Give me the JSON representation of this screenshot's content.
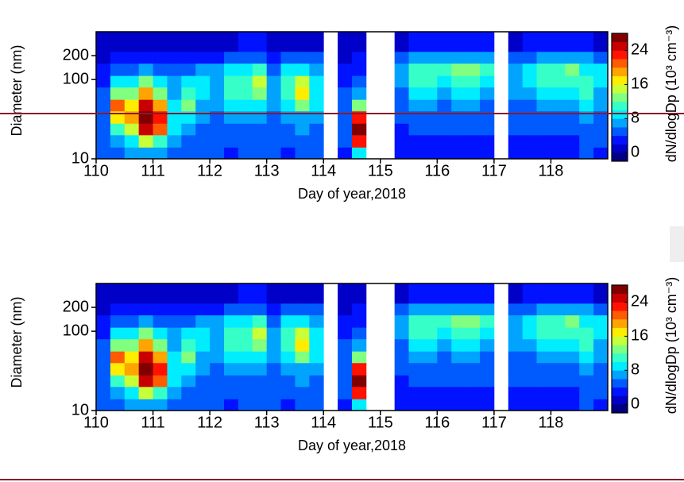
{
  "chart_data": [
    {
      "type": "heatmap",
      "xlabel": "Day of year,2018",
      "ylabel": "Diameter (nm)",
      "colorbar_label": "dN/dlogDp (10³ cm⁻³)",
      "colormap": "jet",
      "yscale": "log",
      "xlim": [
        110,
        119
      ],
      "xticks": [
        110,
        111,
        112,
        113,
        114,
        115,
        116,
        117,
        118
      ],
      "ylim": [
        10,
        400
      ],
      "yticks": [
        10,
        100,
        200
      ],
      "clim": [
        -2,
        28
      ],
      "cticks": [
        0,
        8,
        16,
        24
      ],
      "x": [
        110,
        110.25,
        110.5,
        110.75,
        111,
        111.25,
        111.5,
        111.75,
        112,
        112.25,
        112.5,
        112.75,
        113,
        113.25,
        113.5,
        113.75,
        114,
        114.25,
        114.5,
        114.75,
        115,
        115.25,
        115.5,
        115.75,
        116,
        116.25,
        116.5,
        116.75,
        117,
        117.25,
        117.5,
        117.75,
        118,
        118.25,
        118.5,
        118.75,
        119
      ],
      "y": [
        10,
        14,
        20,
        28,
        40,
        56,
        80,
        112,
        160,
        225,
        400
      ],
      "z": [
        [
          4,
          5,
          6,
          7,
          6,
          5,
          4,
          4,
          4,
          3,
          4,
          4,
          4,
          3,
          4,
          4,
          null,
          3,
          8,
          null,
          null,
          2,
          3,
          3,
          3,
          3,
          3,
          3,
          null,
          3,
          3,
          3,
          3,
          3,
          4,
          3
        ],
        [
          4,
          6,
          8,
          14,
          10,
          6,
          5,
          4,
          4,
          4,
          5,
          4,
          4,
          4,
          5,
          4,
          null,
          4,
          22,
          null,
          null,
          3,
          3,
          3,
          3,
          3,
          3,
          3,
          null,
          3,
          3,
          3,
          3,
          3,
          4,
          4
        ],
        [
          5,
          10,
          14,
          24,
          20,
          8,
          6,
          5,
          5,
          5,
          5,
          5,
          5,
          5,
          6,
          5,
          null,
          5,
          26,
          null,
          null,
          3,
          4,
          4,
          4,
          4,
          4,
          4,
          null,
          4,
          4,
          4,
          4,
          4,
          5,
          4
        ],
        [
          5,
          16,
          18,
          26,
          22,
          8,
          8,
          6,
          5,
          6,
          6,
          6,
          5,
          6,
          7,
          6,
          null,
          5,
          22,
          null,
          null,
          4,
          5,
          5,
          4,
          5,
          5,
          4,
          null,
          4,
          4,
          5,
          5,
          5,
          6,
          5
        ],
        [
          5,
          20,
          16,
          24,
          18,
          8,
          12,
          7,
          6,
          8,
          9,
          9,
          6,
          8,
          12,
          8,
          null,
          4,
          12,
          null,
          null,
          4,
          6,
          6,
          5,
          6,
          6,
          5,
          null,
          5,
          5,
          6,
          6,
          6,
          9,
          6
        ],
        [
          4,
          12,
          12,
          18,
          12,
          7,
          10,
          8,
          7,
          10,
          10,
          13,
          7,
          10,
          16,
          9,
          null,
          4,
          6,
          null,
          null,
          5,
          8,
          8,
          7,
          8,
          8,
          7,
          null,
          6,
          6,
          8,
          8,
          8,
          10,
          7
        ],
        [
          3,
          8,
          9,
          12,
          8,
          6,
          8,
          8,
          7,
          11,
          10,
          14,
          7,
          11,
          14,
          9,
          null,
          3,
          4,
          null,
          null,
          6,
          10,
          10,
          9,
          11,
          11,
          9,
          null,
          7,
          8,
          11,
          10,
          11,
          10,
          8
        ],
        [
          2,
          4,
          5,
          6,
          5,
          4,
          5,
          6,
          6,
          8,
          8,
          10,
          5,
          8,
          9,
          7,
          null,
          2,
          3,
          null,
          null,
          6,
          11,
          11,
          10,
          12,
          12,
          10,
          null,
          7,
          8,
          11,
          11,
          12,
          9,
          8
        ],
        [
          1,
          2,
          2,
          3,
          3,
          2,
          3,
          3,
          3,
          4,
          5,
          5,
          3,
          4,
          4,
          4,
          null,
          1,
          2,
          null,
          null,
          4,
          6,
          7,
          6,
          7,
          7,
          6,
          null,
          5,
          5,
          7,
          7,
          7,
          6,
          5
        ],
        [
          0,
          1,
          1,
          1,
          1,
          1,
          1,
          1,
          1,
          1,
          2,
          2,
          1,
          1,
          1,
          1,
          null,
          0,
          1,
          null,
          null,
          1,
          2,
          2,
          2,
          2,
          2,
          2,
          null,
          1,
          2,
          2,
          2,
          2,
          2,
          1
        ]
      ]
    },
    {
      "type": "heatmap",
      "xlabel": "Day of year,2018",
      "ylabel": "Diameter (nm)",
      "colorbar_label": "dN/dlogDp (10³ cm⁻³)",
      "colormap": "jet",
      "yscale": "log",
      "xlim": [
        110,
        119
      ],
      "xticks": [
        110,
        111,
        112,
        113,
        114,
        115,
        116,
        117,
        118
      ],
      "ylim": [
        10,
        400
      ],
      "yticks": [
        10,
        100,
        200
      ],
      "clim": [
        -2,
        28
      ],
      "cticks": [
        0,
        8,
        16,
        24
      ],
      "x": [
        110,
        110.25,
        110.5,
        110.75,
        111,
        111.25,
        111.5,
        111.75,
        112,
        112.25,
        112.5,
        112.75,
        113,
        113.25,
        113.5,
        113.75,
        114,
        114.25,
        114.5,
        114.75,
        115,
        115.25,
        115.5,
        115.75,
        116,
        116.25,
        116.5,
        116.75,
        117,
        117.25,
        117.5,
        117.75,
        118,
        118.25,
        118.5,
        118.75,
        119
      ],
      "y": [
        10,
        14,
        20,
        28,
        40,
        56,
        80,
        112,
        160,
        225,
        400
      ],
      "z": [
        [
          4,
          5,
          6,
          7,
          6,
          5,
          4,
          4,
          4,
          3,
          4,
          4,
          4,
          3,
          4,
          4,
          null,
          3,
          8,
          null,
          null,
          2,
          3,
          3,
          3,
          3,
          3,
          3,
          null,
          3,
          3,
          3,
          3,
          3,
          4,
          3
        ],
        [
          4,
          6,
          8,
          14,
          10,
          6,
          5,
          4,
          4,
          4,
          5,
          4,
          4,
          4,
          5,
          4,
          null,
          4,
          22,
          null,
          null,
          3,
          3,
          3,
          3,
          3,
          3,
          3,
          null,
          3,
          3,
          3,
          3,
          3,
          4,
          4
        ],
        [
          5,
          10,
          14,
          24,
          20,
          8,
          6,
          5,
          5,
          5,
          5,
          5,
          5,
          5,
          6,
          5,
          null,
          5,
          26,
          null,
          null,
          3,
          4,
          4,
          4,
          4,
          4,
          4,
          null,
          4,
          4,
          4,
          4,
          4,
          5,
          4
        ],
        [
          5,
          16,
          18,
          26,
          22,
          8,
          8,
          6,
          5,
          6,
          6,
          6,
          5,
          6,
          7,
          6,
          null,
          5,
          22,
          null,
          null,
          4,
          5,
          5,
          4,
          5,
          5,
          4,
          null,
          4,
          4,
          5,
          5,
          5,
          6,
          5
        ],
        [
          5,
          20,
          16,
          24,
          18,
          8,
          12,
          7,
          6,
          8,
          9,
          9,
          6,
          8,
          12,
          8,
          null,
          4,
          12,
          null,
          null,
          4,
          6,
          6,
          5,
          6,
          6,
          5,
          null,
          5,
          5,
          6,
          6,
          6,
          9,
          6
        ],
        [
          4,
          12,
          12,
          18,
          12,
          7,
          10,
          8,
          7,
          10,
          10,
          13,
          7,
          10,
          16,
          9,
          null,
          4,
          6,
          null,
          null,
          5,
          8,
          8,
          7,
          8,
          8,
          7,
          null,
          6,
          6,
          8,
          8,
          8,
          10,
          7
        ],
        [
          3,
          8,
          9,
          12,
          8,
          6,
          8,
          8,
          7,
          11,
          10,
          14,
          7,
          11,
          14,
          9,
          null,
          3,
          4,
          null,
          null,
          6,
          10,
          10,
          9,
          11,
          11,
          9,
          null,
          7,
          8,
          11,
          10,
          11,
          10,
          8
        ],
        [
          2,
          4,
          5,
          6,
          5,
          4,
          5,
          6,
          6,
          8,
          8,
          10,
          5,
          8,
          9,
          7,
          null,
          2,
          3,
          null,
          null,
          6,
          11,
          11,
          10,
          12,
          12,
          10,
          null,
          7,
          8,
          11,
          11,
          12,
          9,
          8
        ],
        [
          1,
          2,
          2,
          3,
          3,
          2,
          3,
          3,
          3,
          4,
          5,
          5,
          3,
          4,
          4,
          4,
          null,
          1,
          2,
          null,
          null,
          4,
          6,
          7,
          6,
          7,
          7,
          6,
          null,
          5,
          5,
          7,
          7,
          7,
          6,
          5
        ],
        [
          0,
          1,
          1,
          1,
          1,
          1,
          1,
          1,
          1,
          1,
          2,
          2,
          1,
          1,
          1,
          1,
          null,
          0,
          1,
          null,
          null,
          1,
          2,
          2,
          2,
          2,
          2,
          2,
          null,
          1,
          2,
          2,
          2,
          2,
          2,
          1
        ]
      ]
    }
  ]
}
